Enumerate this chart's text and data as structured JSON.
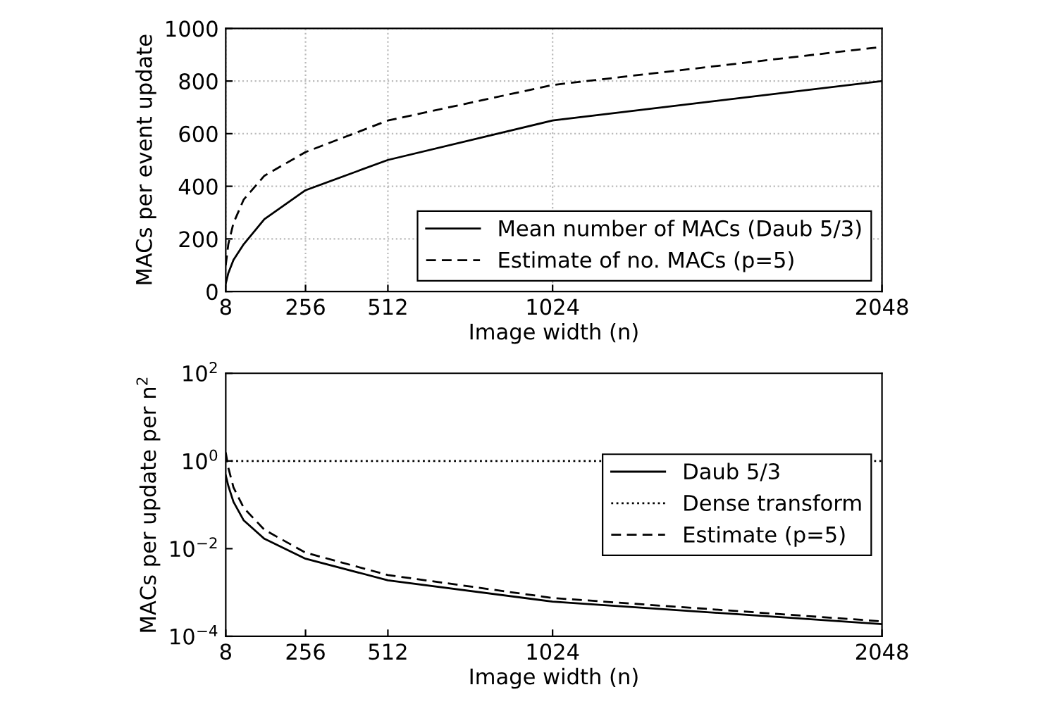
{
  "chart_data": [
    {
      "type": "line",
      "xlabel": "Image width (n)",
      "ylabel": "MACs per event update",
      "x": [
        8,
        16,
        32,
        64,
        128,
        256,
        512,
        1024,
        2048
      ],
      "series": [
        {
          "name": "Mean number of MACs (Daub 5/3)",
          "color": "#000000",
          "line_style": "solid",
          "values": [
            30,
            70,
            120,
            180,
            275,
            385,
            500,
            650,
            800
          ]
        },
        {
          "name": "Estimate of no. MACs (p=5)",
          "color": "#000000",
          "line_style": "dashed",
          "values": [
            100,
            180,
            260,
            350,
            440,
            530,
            650,
            785,
            930
          ]
        }
      ],
      "xlim": [
        8,
        2048
      ],
      "xticks": [
        8,
        256,
        512,
        1024,
        2048
      ],
      "ylim": [
        0,
        1000
      ],
      "yticks": [
        0,
        200,
        400,
        600,
        800,
        1000
      ],
      "grid": true,
      "legend": "bottom right"
    },
    {
      "type": "line",
      "xlabel": "Image width (n)",
      "ylabel": "MACs per update per n$^{2}$",
      "x": [
        8,
        16,
        32,
        64,
        128,
        256,
        512,
        1024,
        2048
      ],
      "log": "y",
      "series": [
        {
          "name": "Daub 5/3",
          "color": "#000000",
          "line_style": "solid",
          "values": [
            0.47,
            0.27,
            0.117,
            0.044,
            0.0168,
            0.0059,
            0.0019,
            0.00062,
            0.00019
          ]
        },
        {
          "name": "Dense transform",
          "color": "#000000",
          "line_style": "dotted",
          "values": [
            1,
            1,
            1,
            1,
            1,
            1,
            1,
            1,
            1
          ]
        },
        {
          "name": "Estimate (p=5)",
          "color": "#000000",
          "line_style": "dashed",
          "values": [
            1.56,
            0.7,
            0.25,
            0.085,
            0.027,
            0.0081,
            0.0025,
            0.00075,
            0.00022
          ]
        }
      ],
      "xlim": [
        8,
        2048
      ],
      "xticks": [
        8,
        256,
        512,
        1024,
        2048
      ],
      "ylim": [
        0.0001,
        100
      ],
      "yticks": [
        {
          "value": 0.0001,
          "label": "10$^{−4}$"
        },
        {
          "value": 0.01,
          "label": "10$^{−2}$"
        },
        {
          "value": 1,
          "label": "10$^{0}$"
        },
        {
          "value": 100,
          "label": "10$^{2}$"
        }
      ],
      "grid": false,
      "legend": "right"
    }
  ]
}
